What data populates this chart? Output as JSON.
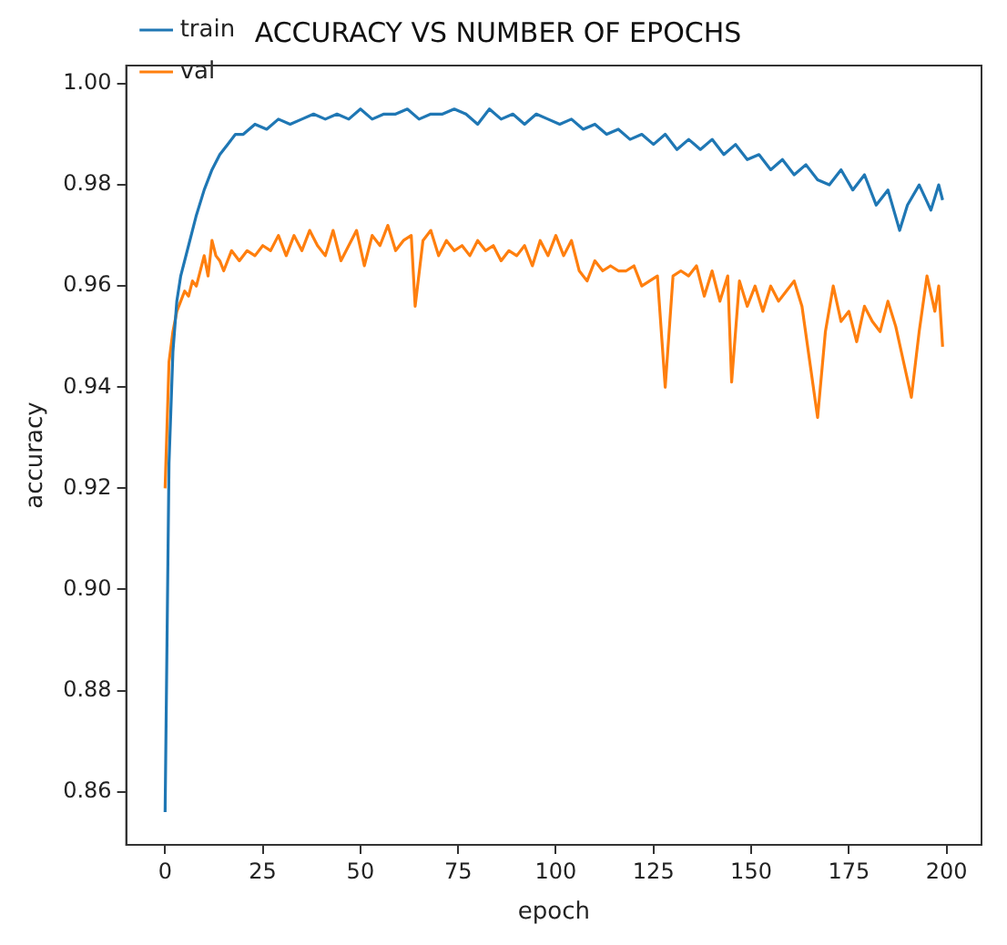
{
  "chart_data": {
    "type": "line",
    "title": "ACCURACY VS NUMBER OF EPOCHS",
    "xlabel": "epoch",
    "ylabel": "accuracy",
    "xlim": [
      -9.95,
      208.95
    ],
    "xticks": [
      0,
      25,
      50,
      75,
      100,
      125,
      150,
      175,
      200
    ],
    "ylim": [
      0.8495,
      1.0036
    ],
    "yticks": [
      0.86,
      0.88,
      {
        "value": 0.9,
        "label": "0.90"
      },
      0.92,
      0.94,
      0.96,
      0.98,
      {
        "value": 1,
        "label": "1.00"
      }
    ],
    "grid": false,
    "legend": "top left",
    "marker": "none",
    "line_style": "solid",
    "series": [
      {
        "name": "train",
        "color": "#1f77b4",
        "x": [
          0,
          1,
          2,
          3,
          4,
          6,
          8,
          10,
          12,
          14,
          16,
          18,
          20,
          23,
          26,
          29,
          32,
          35,
          38,
          41,
          44,
          47,
          50,
          53,
          56,
          59,
          62,
          65,
          68,
          71,
          74,
          77,
          80,
          83,
          86,
          89,
          92,
          95,
          98,
          101,
          104,
          107,
          110,
          113,
          116,
          119,
          122,
          125,
          128,
          131,
          134,
          137,
          140,
          143,
          146,
          149,
          152,
          155,
          158,
          161,
          164,
          167,
          170,
          173,
          176,
          179,
          182,
          185,
          188,
          190,
          193,
          196,
          198,
          199
        ],
        "values": [
          0.856,
          0.925,
          0.947,
          0.957,
          0.962,
          0.968,
          0.974,
          0.979,
          0.983,
          0.986,
          0.988,
          0.99,
          0.99,
          0.992,
          0.991,
          0.993,
          0.992,
          0.993,
          0.994,
          0.993,
          0.994,
          0.993,
          0.995,
          0.993,
          0.994,
          0.994,
          0.995,
          0.993,
          0.994,
          0.994,
          0.995,
          0.994,
          0.992,
          0.995,
          0.993,
          0.994,
          0.992,
          0.994,
          0.993,
          0.992,
          0.993,
          0.991,
          0.992,
          0.99,
          0.991,
          0.989,
          0.99,
          0.988,
          0.99,
          0.987,
          0.989,
          0.987,
          0.989,
          0.986,
          0.988,
          0.985,
          0.986,
          0.983,
          0.985,
          0.982,
          0.984,
          0.981,
          0.98,
          0.983,
          0.979,
          0.982,
          0.976,
          0.979,
          0.971,
          0.976,
          0.98,
          0.975,
          0.98,
          0.977
        ]
      },
      {
        "name": "val",
        "color": "#ff7f0e",
        "x": [
          0,
          1,
          2,
          3,
          4,
          5,
          6,
          7,
          8,
          9,
          10,
          11,
          12,
          13,
          14,
          15,
          17,
          19,
          21,
          23,
          25,
          27,
          29,
          31,
          33,
          35,
          37,
          39,
          41,
          43,
          45,
          47,
          49,
          51,
          53,
          55,
          57,
          59,
          61,
          63,
          64,
          66,
          68,
          70,
          72,
          74,
          76,
          78,
          80,
          82,
          84,
          86,
          88,
          90,
          92,
          94,
          96,
          98,
          100,
          102,
          104,
          106,
          108,
          110,
          112,
          114,
          116,
          118,
          120,
          122,
          124,
          126,
          128,
          130,
          132,
          134,
          136,
          138,
          140,
          142,
          144,
          145,
          147,
          149,
          151,
          153,
          155,
          157,
          159,
          161,
          163,
          165,
          167,
          169,
          171,
          173,
          175,
          177,
          179,
          181,
          183,
          185,
          187,
          189,
          191,
          193,
          195,
          197,
          198,
          199
        ],
        "values": [
          0.92,
          0.945,
          0.951,
          0.955,
          0.957,
          0.959,
          0.958,
          0.961,
          0.96,
          0.963,
          0.966,
          0.962,
          0.969,
          0.966,
          0.965,
          0.963,
          0.967,
          0.965,
          0.967,
          0.966,
          0.968,
          0.967,
          0.97,
          0.966,
          0.97,
          0.967,
          0.971,
          0.968,
          0.966,
          0.971,
          0.965,
          0.968,
          0.971,
          0.964,
          0.97,
          0.968,
          0.972,
          0.967,
          0.969,
          0.97,
          0.956,
          0.969,
          0.971,
          0.966,
          0.969,
          0.967,
          0.968,
          0.966,
          0.969,
          0.967,
          0.968,
          0.965,
          0.967,
          0.966,
          0.968,
          0.964,
          0.969,
          0.966,
          0.97,
          0.966,
          0.969,
          0.963,
          0.961,
          0.965,
          0.963,
          0.964,
          0.963,
          0.963,
          0.964,
          0.96,
          0.961,
          0.962,
          0.94,
          0.962,
          0.963,
          0.962,
          0.964,
          0.958,
          0.963,
          0.957,
          0.962,
          0.941,
          0.961,
          0.956,
          0.96,
          0.955,
          0.96,
          0.957,
          0.959,
          0.961,
          0.956,
          0.945,
          0.934,
          0.951,
          0.96,
          0.953,
          0.955,
          0.949,
          0.956,
          0.953,
          0.951,
          0.957,
          0.952,
          0.945,
          0.938,
          0.951,
          0.962,
          0.955,
          0.96,
          0.948
        ]
      }
    ]
  }
}
